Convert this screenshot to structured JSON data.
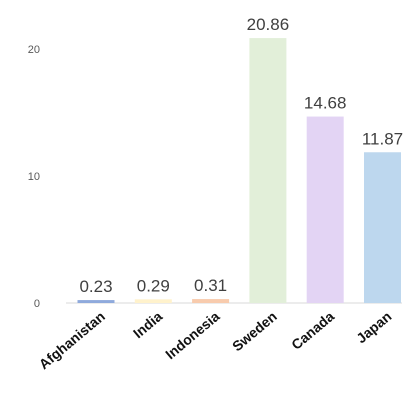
{
  "chart_data": {
    "type": "bar",
    "title": "",
    "xlabel": "",
    "ylabel": "",
    "categories": [
      "Afghanistan",
      "India",
      "Indonesia",
      "Sweden",
      "Canada",
      "Japan"
    ],
    "values": [
      0.23,
      0.29,
      0.31,
      20.86,
      14.68,
      11.87
    ],
    "data_labels": [
      "0.23",
      "0.29",
      "0.31",
      "20.86",
      "14.68",
      "11.87"
    ],
    "colors": [
      "#8faadc",
      "#fff2cc",
      "#f8cbad",
      "#e2efd9",
      "#e3d4f4",
      "#bdd7ee"
    ],
    "ylim": [
      0,
      21
    ],
    "yticks": [
      0,
      10,
      20
    ],
    "ytick_labels": [
      "0",
      "10",
      "20"
    ],
    "grid": false,
    "legend": "none"
  }
}
